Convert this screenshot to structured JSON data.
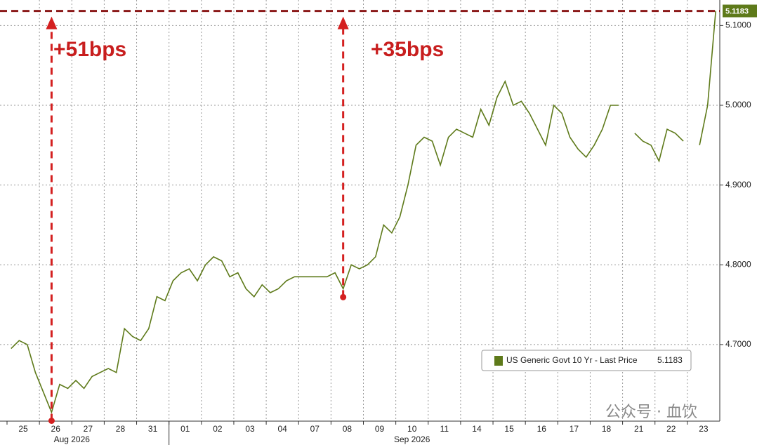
{
  "chart_data": {
    "type": "line",
    "annotations": [
      "+51bps",
      "+35bps"
    ],
    "watermark": "公众号 · 血饮",
    "month_labels": [
      "Aug 2026",
      "Sep 2026"
    ],
    "categories": [
      null,
      "25",
      null,
      null,
      null,
      "26",
      null,
      null,
      null,
      "27",
      null,
      null,
      null,
      "28",
      null,
      null,
      null,
      "31",
      null,
      null,
      null,
      "01",
      null,
      null,
      null,
      "02",
      null,
      null,
      null,
      "03",
      null,
      null,
      null,
      "04",
      null,
      null,
      null,
      "07",
      null,
      null,
      null,
      "08",
      null,
      null,
      null,
      "09",
      null,
      null,
      null,
      "10",
      null,
      null,
      null,
      "11",
      null,
      null,
      null,
      "14",
      null,
      null,
      null,
      "15",
      null,
      null,
      null,
      "16",
      null,
      null,
      null,
      "17",
      null,
      null,
      null,
      "18",
      null,
      null,
      null,
      "21",
      null,
      null,
      null,
      "22",
      null,
      null,
      null,
      "23",
      null,
      null
    ],
    "series": [
      {
        "name": "US Generic Govt 10 Yr - Last Price",
        "color": "#5e7a1a",
        "values": [
          4.695,
          4.705,
          4.7,
          4.665,
          4.64,
          4.615,
          4.65,
          4.645,
          4.655,
          4.645,
          4.66,
          4.665,
          4.67,
          4.665,
          4.72,
          4.71,
          4.705,
          4.72,
          4.76,
          4.755,
          4.78,
          4.79,
          4.795,
          4.78,
          4.8,
          4.81,
          4.805,
          4.785,
          4.79,
          4.77,
          4.76,
          4.775,
          4.765,
          4.77,
          4.78,
          4.785,
          4.785,
          4.785,
          4.785,
          4.785,
          4.79,
          4.77,
          4.8,
          4.795,
          4.8,
          4.81,
          4.85,
          4.84,
          4.86,
          4.9,
          4.95,
          4.96,
          4.955,
          4.925,
          4.96,
          4.97,
          4.965,
          4.96,
          4.995,
          4.975,
          5.01,
          5.03,
          5.0,
          5.005,
          4.99,
          4.97,
          4.95,
          5.0,
          4.99,
          4.96,
          4.945,
          4.935,
          4.95,
          4.97,
          5.0,
          5.0,
          null,
          4.965,
          4.955,
          4.95,
          4.93,
          4.97,
          4.965,
          4.955,
          null,
          4.95,
          5.0,
          5.1183
        ]
      }
    ],
    "ylim": [
      4.604,
      5.132
    ],
    "yticks": [
      {
        "value": 4.7,
        "label": "4.7000"
      },
      {
        "value": 4.8,
        "label": "4.8000"
      },
      {
        "value": 4.9,
        "label": "4.9000"
      },
      {
        "value": 5.0,
        "label": "5.0000"
      },
      {
        "value": 5.1,
        "label": "5.1000"
      }
    ],
    "grid": true
  }
}
